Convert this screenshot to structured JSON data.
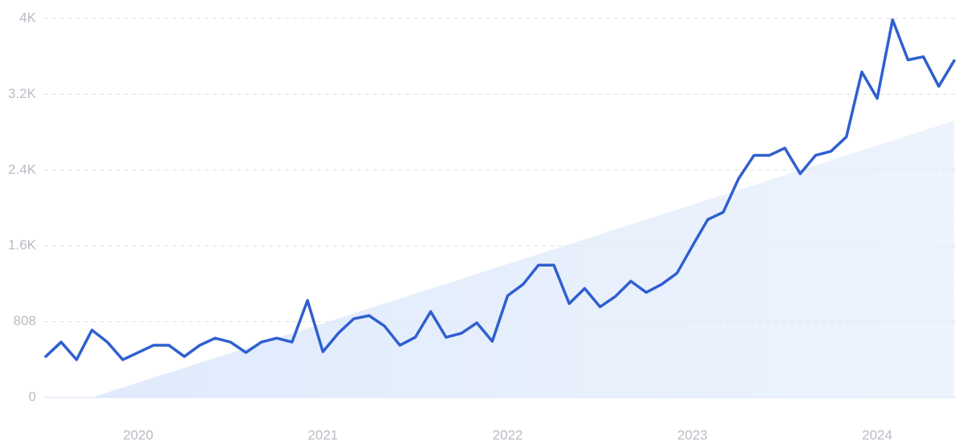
{
  "chart_data": {
    "type": "line",
    "categories": [
      null,
      null,
      null,
      null,
      null,
      null,
      "2020",
      null,
      null,
      null,
      null,
      null,
      null,
      null,
      null,
      null,
      null,
      null,
      "2021",
      null,
      null,
      null,
      null,
      null,
      null,
      null,
      null,
      null,
      null,
      null,
      "2022",
      null,
      null,
      null,
      null,
      null,
      null,
      null,
      null,
      null,
      null,
      null,
      "2023",
      null,
      null,
      null,
      null,
      null,
      null,
      null,
      null,
      null,
      null,
      null,
      "2024",
      null,
      null,
      null,
      null,
      null
    ],
    "series": [
      {
        "color": "#dce8fb",
        "style": "area",
        "values": [
          null,
          null,
          null,
          0,
          53,
          105,
          158,
          211,
          263,
          316,
          369,
          421,
          474,
          527,
          579,
          632,
          685,
          737,
          790,
          843,
          895,
          948,
          1001,
          1053,
          1106,
          1159,
          1211,
          1264,
          1317,
          1369,
          1422,
          1475,
          1527,
          1580,
          1633,
          1685,
          1738,
          1791,
          1843,
          1896,
          1949,
          2001,
          2054,
          2107,
          2159,
          2212,
          2265,
          2317,
          2370,
          2423,
          2475,
          2528,
          2581,
          2633,
          2686,
          2739,
          2791,
          2844,
          2897,
          2949
        ]
      },
      {
        "color": "#2f5fd0",
        "style": "line",
        "values": [
          436,
          590,
          402,
          718,
          590,
          402,
          479,
          556,
          556,
          436,
          556,
          632,
          590,
          479,
          590,
          632,
          590,
          1034,
          487,
          684,
          838,
          872,
          761,
          556,
          641,
          915,
          641,
          684,
          795,
          598,
          1085,
          1205,
          1410,
          1410,
          1000,
          1162,
          966,
          1077,
          1239,
          1120,
          1205,
          1325,
          1615,
          1897,
          1974,
          2333,
          2581,
          2581,
          2658,
          2385,
          2581,
          2624,
          2778,
          3470,
          3188,
          4026,
          3598,
          3632,
          3316,
          3590
        ]
      }
    ],
    "ylim": [
      0,
      4040
    ],
    "yticks": [
      0,
      808,
      {
        "value": 1616,
        "label": "1.6K"
      },
      {
        "value": 2424,
        "label": "2.4K"
      },
      {
        "value": 3232,
        "label": "3.2K"
      },
      {
        "value": 4040,
        "label": "4K"
      }
    ],
    "grid": true
  }
}
